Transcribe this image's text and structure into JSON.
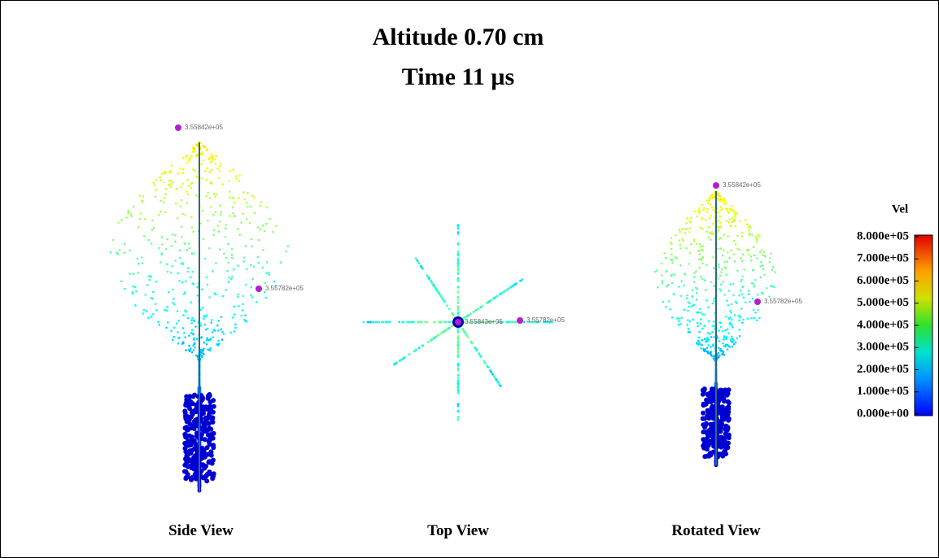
{
  "header": {
    "title": "Altitude 0.70 cm",
    "subtitle": "Time 11 µs"
  },
  "views": [
    {
      "label": "Side View",
      "annotations": [
        "3.55842e+05",
        "3.55782e+05"
      ]
    },
    {
      "label": "Top View",
      "annotations": [
        "3.55843e+05",
        "3.55782e+05"
      ]
    },
    {
      "label": "Rotated View",
      "annotations": [
        "3.55842e+05",
        "3.55782e+05"
      ]
    }
  ],
  "colorbar": {
    "title": "Vel",
    "range": [
      0,
      800000
    ],
    "ticks": [
      {
        "value": 800000,
        "label": "8.000e+05"
      },
      {
        "value": 700000,
        "label": "7.000e+05"
      },
      {
        "value": 600000,
        "label": "6.000e+05"
      },
      {
        "value": 500000,
        "label": "5.000e+05"
      },
      {
        "value": 400000,
        "label": "4.000e+05"
      },
      {
        "value": 300000,
        "label": "3.000e+05"
      },
      {
        "value": 200000,
        "label": "2.000e+05"
      },
      {
        "value": 100000,
        "label": "1.000e+05"
      },
      {
        "value": 0,
        "label": "0.000e+00"
      }
    ]
  }
}
